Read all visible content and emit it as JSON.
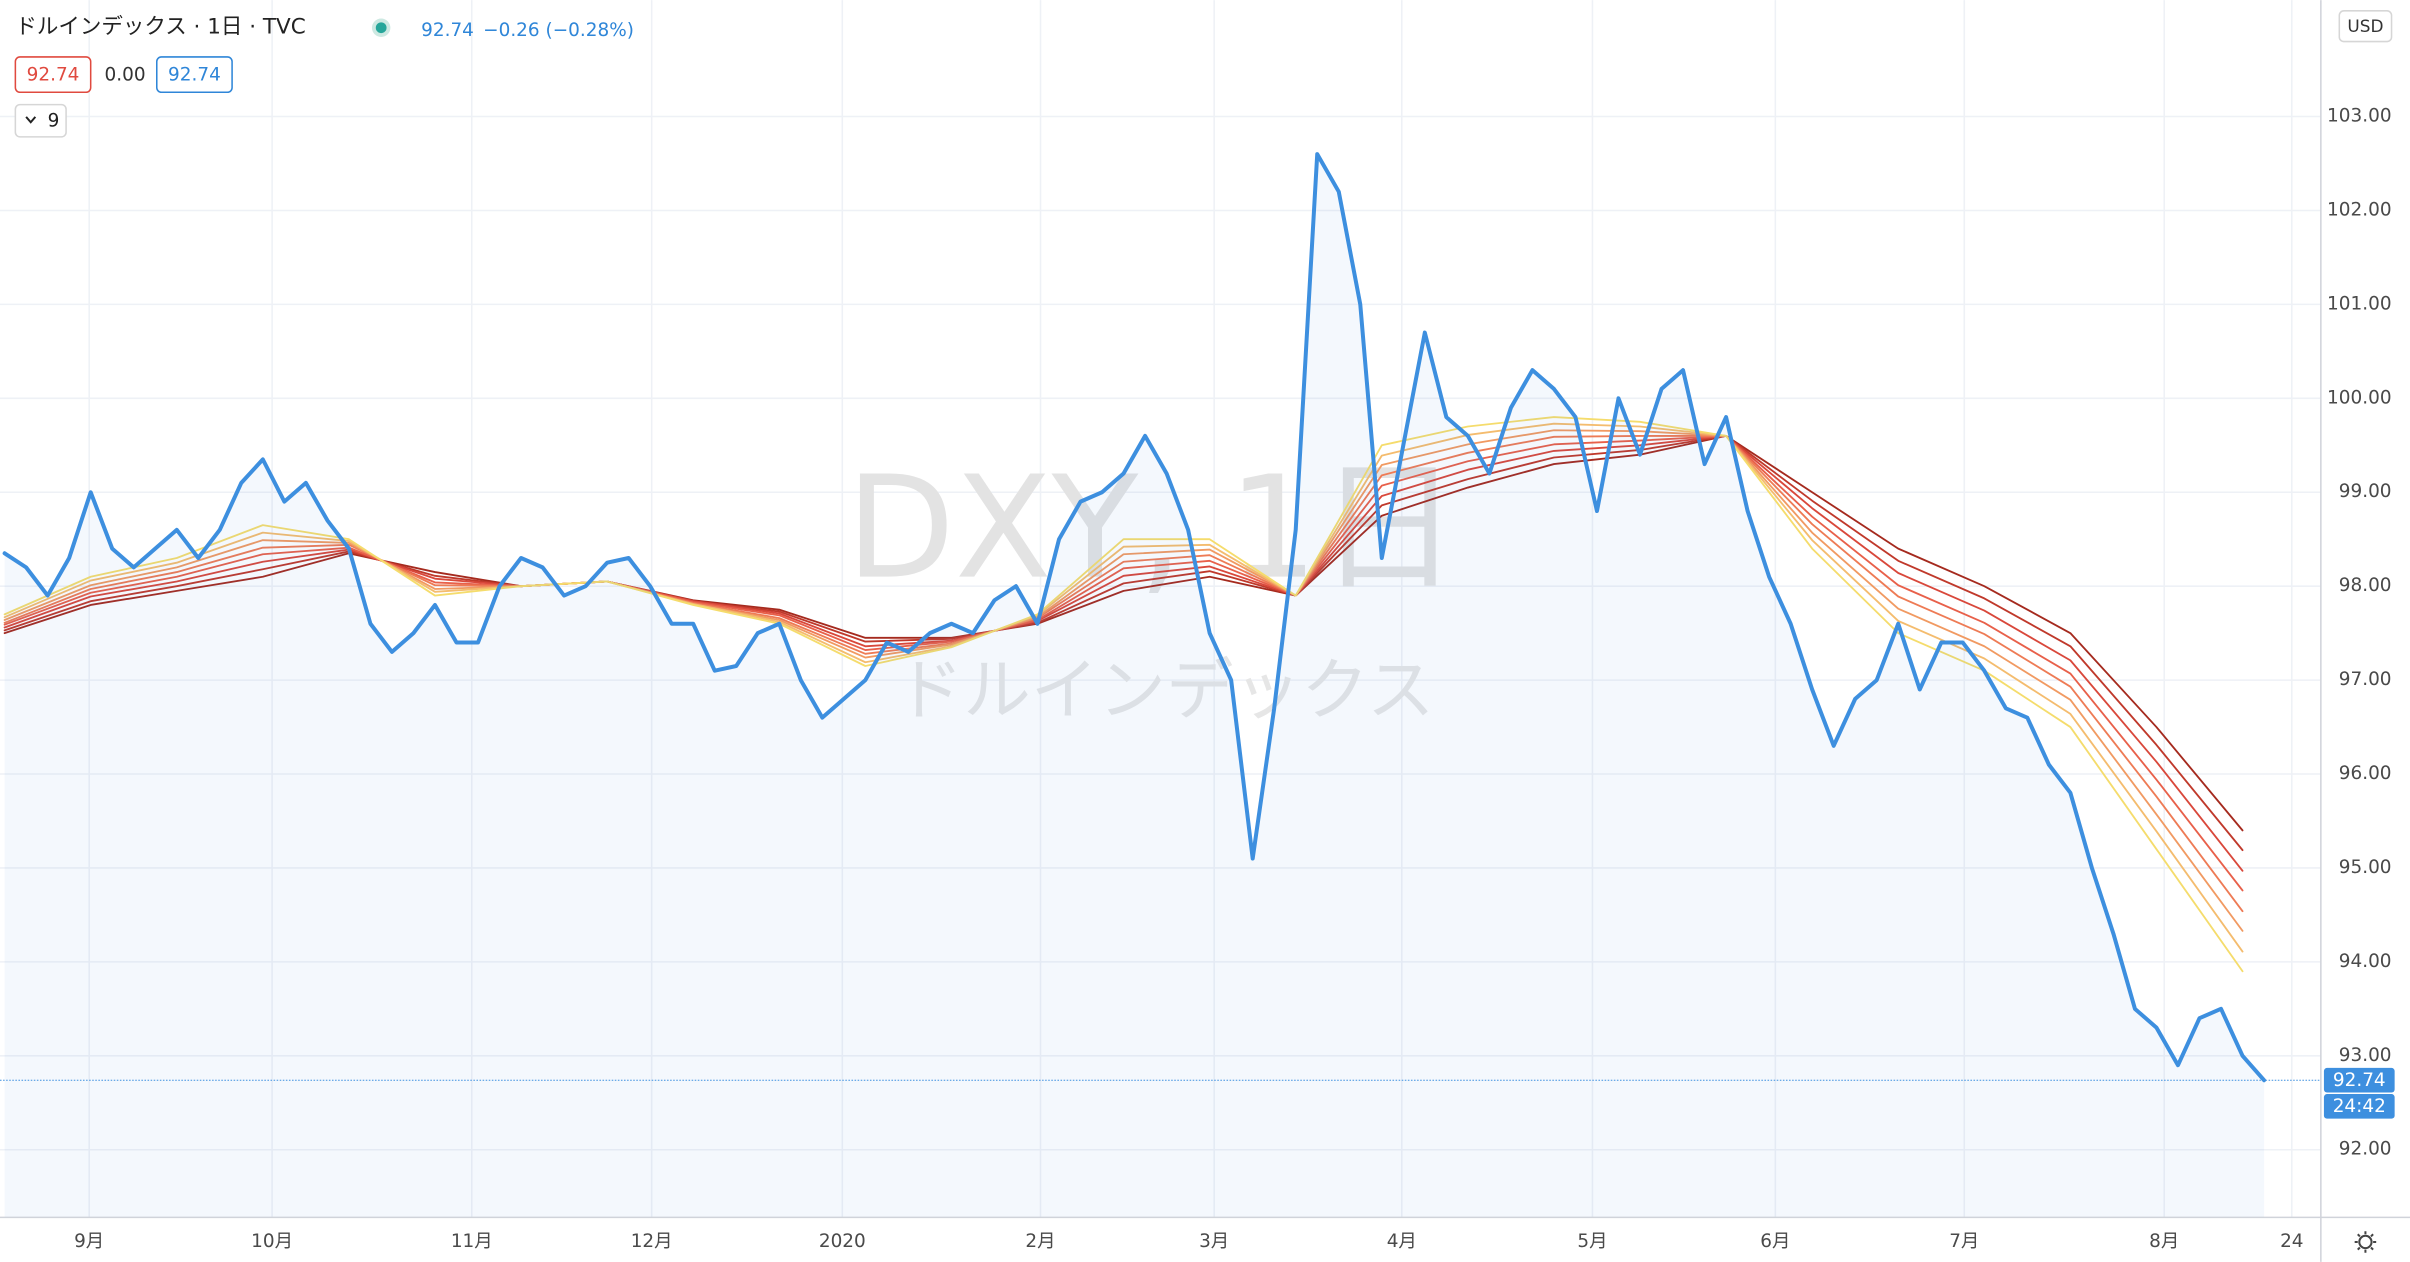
{
  "chart_data": {
    "type": "line",
    "title": "ドルインデックス · 1日 · TVC",
    "change": "−0.26 (−0.28%)",
    "legend_change": "0.00",
    "indicator_count": 9,
    "watermark": "DXY, 1日",
    "watermark_subtitle": "ドルインデックス",
    "currency": "USD",
    "countdown": "24:42",
    "last_price": 92.74,
    "xlim": [
      0,
      107.64
    ],
    "xticks": [
      {
        "value": 3.93,
        "label": "9月"
      },
      {
        "value": 12.43,
        "label": "10月"
      },
      {
        "value": 21.71,
        "label": "11月"
      },
      {
        "value": 30.07,
        "label": "12月"
      },
      {
        "value": 38.93,
        "label": "2020"
      },
      {
        "value": 48.14,
        "label": "2月"
      },
      {
        "value": 56.21,
        "label": "3月"
      },
      {
        "value": 64.93,
        "label": "4月"
      },
      {
        "value": 73.79,
        "label": "5月"
      },
      {
        "value": 82.29,
        "label": "6月"
      },
      {
        "value": 91.07,
        "label": "7月"
      },
      {
        "value": 100.36,
        "label": "8月"
      },
      {
        "value": 106.29,
        "label": "24"
      }
    ],
    "ylim": [
      91.28,
      104.24
    ],
    "yticks": [
      {
        "value": 92,
        "label": "92.00"
      },
      {
        "value": 93,
        "label": "93.00"
      },
      {
        "value": 94,
        "label": "94.00"
      },
      {
        "value": 95,
        "label": "95.00"
      },
      {
        "value": 96,
        "label": "96.00"
      },
      {
        "value": 97,
        "label": "97.00"
      },
      {
        "value": 98,
        "label": "98.00"
      },
      {
        "value": 99,
        "label": "99.00"
      },
      {
        "value": 100,
        "label": "100.00"
      },
      {
        "value": 101,
        "label": "101.00"
      },
      {
        "value": 102,
        "label": "102.00"
      },
      {
        "value": 103,
        "label": "103.00"
      }
    ],
    "grid": true,
    "series": [
      {
        "color": "#3d8fdf",
        "area": true,
        "values": [
          98.35,
          98.2,
          97.9,
          98.3,
          99.0,
          98.4,
          98.2,
          98.4,
          98.6,
          98.3,
          98.6,
          99.1,
          99.35,
          98.9,
          99.1,
          98.7,
          98.4,
          97.6,
          97.3,
          97.5,
          97.8,
          97.4,
          97.4,
          98.0,
          98.3,
          98.2,
          97.9,
          98.0,
          98.25,
          98.3,
          98.0,
          97.6,
          97.6,
          97.1,
          97.15,
          97.5,
          97.6,
          97.0,
          96.6,
          96.8,
          97.0,
          97.4,
          97.3,
          97.5,
          97.6,
          97.5,
          97.85,
          98.0,
          97.6,
          98.5,
          98.9,
          99.0,
          99.2,
          99.6,
          99.2,
          98.6,
          97.5,
          97.0,
          95.1,
          96.7,
          98.6,
          102.6,
          102.2,
          101.0,
          98.3,
          99.5,
          100.7,
          99.8,
          99.6,
          99.2,
          99.9,
          100.3,
          100.1,
          99.8,
          98.8,
          100.0,
          99.4,
          100.1,
          100.3,
          99.3,
          99.8,
          98.8,
          98.1,
          97.6,
          96.9,
          96.3,
          96.8,
          97.0,
          97.6,
          96.9,
          97.4,
          97.4,
          97.1,
          96.7,
          96.6,
          96.1,
          95.8,
          95.0,
          94.3,
          93.5,
          93.3,
          92.9,
          93.4,
          93.5,
          93.0,
          92.74
        ]
      },
      {
        "color": "#a52a1e",
        "x": [
          0,
          4,
          8,
          12,
          16,
          20,
          24,
          28,
          32,
          36,
          40,
          44,
          48,
          52,
          56,
          60,
          64,
          68,
          72,
          76,
          80,
          84,
          88,
          92,
          96,
          100,
          104
        ],
        "values": [
          97.5,
          97.8,
          97.95,
          98.1,
          98.35,
          98.15,
          98.0,
          98.05,
          97.85,
          97.75,
          97.45,
          97.45,
          97.6,
          97.95,
          98.1,
          97.9,
          98.75,
          99.05,
          99.3,
          99.4,
          99.6,
          99.0,
          98.4,
          98.0,
          97.5,
          96.5,
          95.4
        ]
      },
      {
        "color": "#c0392b",
        "x": [
          0,
          4,
          8,
          12,
          16,
          20,
          24,
          28,
          32,
          36,
          40,
          44,
          48,
          52,
          56,
          60,
          64,
          68,
          72,
          76,
          80,
          84,
          88,
          92,
          96,
          100,
          104
        ],
        "values": [
          97.53,
          97.84,
          98.0,
          98.18,
          98.37,
          98.11,
          98.0,
          98.05,
          97.84,
          97.73,
          97.41,
          97.44,
          97.61,
          98.03,
          98.16,
          97.9,
          98.86,
          99.14,
          99.37,
          99.45,
          99.6,
          98.91,
          98.27,
          97.87,
          97.36,
          96.31,
          95.19
        ]
      },
      {
        "color": "#d9483b",
        "x": [
          0,
          4,
          8,
          12,
          16,
          20,
          24,
          28,
          32,
          36,
          40,
          44,
          48,
          52,
          56,
          60,
          64,
          68,
          72,
          76,
          80,
          84,
          88,
          92,
          96,
          100,
          104
        ],
        "values": [
          97.56,
          97.89,
          98.05,
          98.26,
          98.39,
          98.08,
          98.0,
          98.05,
          97.84,
          97.71,
          97.36,
          97.42,
          97.63,
          98.11,
          98.21,
          97.9,
          98.96,
          99.24,
          99.44,
          99.5,
          99.6,
          98.83,
          98.14,
          97.74,
          97.21,
          96.13,
          94.97
        ]
      },
      {
        "color": "#e8604a",
        "x": [
          0,
          4,
          8,
          12,
          16,
          20,
          24,
          28,
          32,
          36,
          40,
          44,
          48,
          52,
          56,
          60,
          64,
          68,
          72,
          76,
          80,
          84,
          88,
          92,
          96,
          100,
          104
        ],
        "values": [
          97.59,
          97.93,
          98.1,
          98.34,
          98.41,
          98.04,
          98.0,
          98.05,
          97.83,
          97.69,
          97.32,
          97.41,
          97.64,
          98.19,
          98.27,
          97.9,
          99.07,
          99.33,
          99.51,
          99.55,
          99.6,
          98.74,
          98.01,
          97.61,
          97.07,
          95.94,
          94.76
        ]
      },
      {
        "color": "#ee7b55",
        "x": [
          0,
          4,
          8,
          12,
          16,
          20,
          24,
          28,
          32,
          36,
          40,
          44,
          48,
          52,
          56,
          60,
          64,
          68,
          72,
          76,
          80,
          84,
          88,
          92,
          96,
          100,
          104
        ],
        "values": [
          97.61,
          97.97,
          98.15,
          98.41,
          98.44,
          98.01,
          98.0,
          98.05,
          97.82,
          97.66,
          97.28,
          97.39,
          97.66,
          98.26,
          98.33,
          97.9,
          99.18,
          99.42,
          99.59,
          99.6,
          99.6,
          98.66,
          97.89,
          97.49,
          96.93,
          95.76,
          94.54
        ]
      },
      {
        "color": "#f19a62",
        "x": [
          0,
          4,
          8,
          12,
          16,
          20,
          24,
          28,
          32,
          36,
          40,
          44,
          48,
          52,
          56,
          60,
          64,
          68,
          72,
          76,
          80,
          84,
          88,
          92,
          96,
          100,
          104
        ],
        "values": [
          97.64,
          98.01,
          98.2,
          98.49,
          98.46,
          97.97,
          98.0,
          98.05,
          97.81,
          97.64,
          97.24,
          97.38,
          97.67,
          98.34,
          98.39,
          97.9,
          99.29,
          99.51,
          99.66,
          99.65,
          99.6,
          98.57,
          97.76,
          97.36,
          96.79,
          95.57,
          94.33
        ]
      },
      {
        "color": "#f4bc6e",
        "x": [
          0,
          4,
          8,
          12,
          16,
          20,
          24,
          28,
          32,
          36,
          40,
          44,
          48,
          52,
          56,
          60,
          64,
          68,
          72,
          76,
          80,
          84,
          88,
          92,
          96,
          100,
          104
        ],
        "values": [
          97.67,
          98.06,
          98.25,
          98.57,
          98.48,
          97.94,
          98.0,
          98.05,
          97.81,
          97.62,
          97.19,
          97.36,
          97.69,
          98.42,
          98.44,
          97.9,
          99.39,
          99.61,
          99.73,
          99.7,
          99.6,
          98.49,
          97.63,
          97.23,
          96.64,
          95.39,
          94.11
        ]
      },
      {
        "color": "#f5dc6c",
        "x": [
          0,
          4,
          8,
          12,
          16,
          20,
          24,
          28,
          32,
          36,
          40,
          44,
          48,
          52,
          56,
          60,
          64,
          68,
          72,
          76,
          80,
          84,
          88,
          92,
          96,
          100,
          104
        ],
        "values": [
          97.7,
          98.1,
          98.3,
          98.65,
          98.5,
          97.9,
          98.0,
          98.05,
          97.8,
          97.6,
          97.15,
          97.35,
          97.7,
          98.5,
          98.5,
          97.9,
          99.5,
          99.7,
          99.8,
          99.75,
          99.6,
          98.4,
          97.5,
          97.1,
          96.5,
          95.2,
          93.9
        ]
      }
    ]
  }
}
